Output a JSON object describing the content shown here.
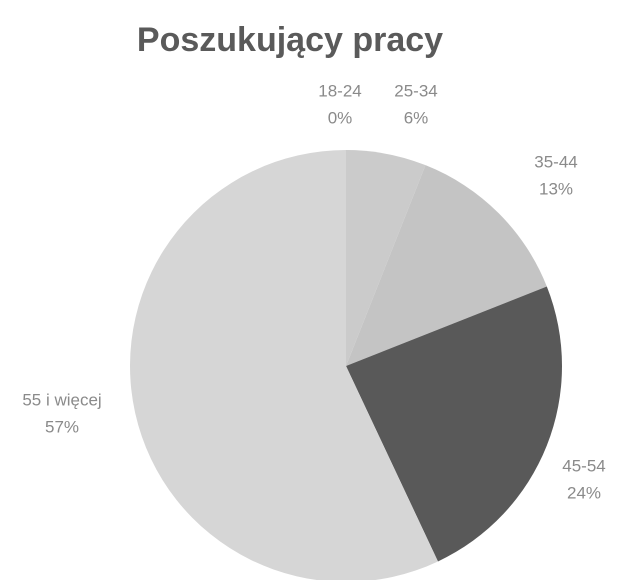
{
  "chart_data": {
    "type": "pie",
    "title": "Poszukujący pracy",
    "categories": [
      "18-24",
      "25-34",
      "35-44",
      "45-54",
      "55 i więcej"
    ],
    "values": [
      0,
      6,
      13,
      24,
      57
    ],
    "value_labels": [
      "0%",
      "6%",
      "13%",
      "24%",
      "57%"
    ],
    "colors": [
      "#cfcfcf",
      "#cbcbcb",
      "#c4c4c4",
      "#595959",
      "#d6d6d6"
    ]
  }
}
